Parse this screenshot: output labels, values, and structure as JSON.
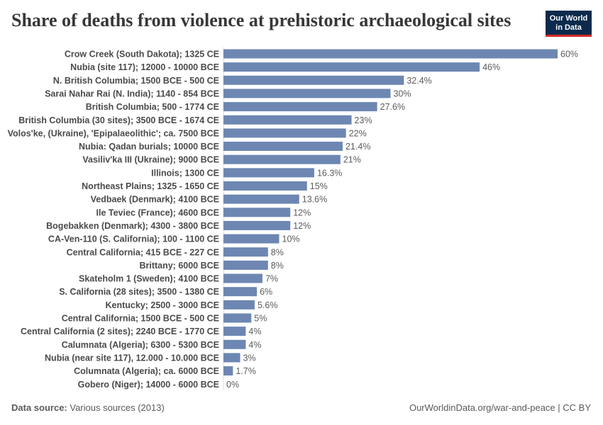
{
  "title": "Share of deaths from violence at prehistoric archaeological sites",
  "logo": {
    "line1": "Our World",
    "line2": "in Data",
    "bg_color": "#0c2a4d",
    "accent_color": "#d42b2b"
  },
  "footer": {
    "source_label": "Data source:",
    "source_text": " Various sources (2013)",
    "credit": "OurWorldinData.org/war-and-peace | CC BY"
  },
  "chart_data": {
    "type": "bar",
    "orientation": "horizontal",
    "bar_color": "#6d87b2",
    "xlim": [
      0,
      60
    ],
    "value_suffix": "%",
    "grid": false,
    "categories": [
      "Crow Creek (South Dakota); 1325 CE",
      "Nubia (site 117); 12000 - 10000 BCE",
      "N. British Columbia; 1500 BCE - 500 CE",
      "Sarai Nahar Rai (N. India); 1140 - 854 BCE",
      "British Columbia; 500 - 1774 CE",
      "British Columbia (30 sites); 3500 BCE - 1674 CE",
      "Volos'ke, (Ukraine), 'Epipalaeolithic'; ca. 7500 BCE",
      "Nubia: Qadan burials; 10000 BCE",
      "Vasiliv'ka III (Ukraine); 9000 BCE",
      "Illinois; 1300 CE",
      "Northeast Plains; 1325 - 1650 CE",
      "Vedbaek (Denmark); 4100 BCE",
      "Ile Teviec (France); 4600 BCE",
      "Bogebakken (Denmark); 4300 - 3800 BCE",
      "CA-Ven-110 (S. California); 100 - 1100 CE",
      "Central California; 415 BCE - 227 CE",
      "Brittany; 6000 BCE",
      "Skateholm 1 (Sweden); 4100 BCE",
      "S. California (28 sites); 3500 - 1380 CE",
      "Kentucky; 2500 - 3000 BCE",
      "Central California; 1500 BCE - 500 CE",
      "Central California (2 sites); 2240 BCE - 1770 CE",
      "Calumnata (Algeria); 6300 - 5300 BCE",
      "Nubia (near site 117), 12.000 - 10.000 BCE",
      "Columnata (Algeria); ca. 6000 BCE",
      "Gobero (Niger); 14000 - 6000 BCE"
    ],
    "values": [
      60,
      46,
      32.4,
      30,
      27.6,
      23,
      22,
      21.4,
      21,
      16.3,
      15,
      13.6,
      12,
      12,
      10,
      8,
      8,
      7,
      6,
      5.6,
      5,
      4,
      4,
      3,
      1.7,
      0
    ],
    "value_labels": [
      "60%",
      "46%",
      "32.4%",
      "30%",
      "27.6%",
      "23%",
      "22%",
      "21.4%",
      "21%",
      "16.3%",
      "15%",
      "13.6%",
      "12%",
      "12%",
      "10%",
      "8%",
      "8%",
      "7%",
      "6%",
      "5.6%",
      "5%",
      "4%",
      "4%",
      "3%",
      "1.7%",
      "0%"
    ]
  }
}
